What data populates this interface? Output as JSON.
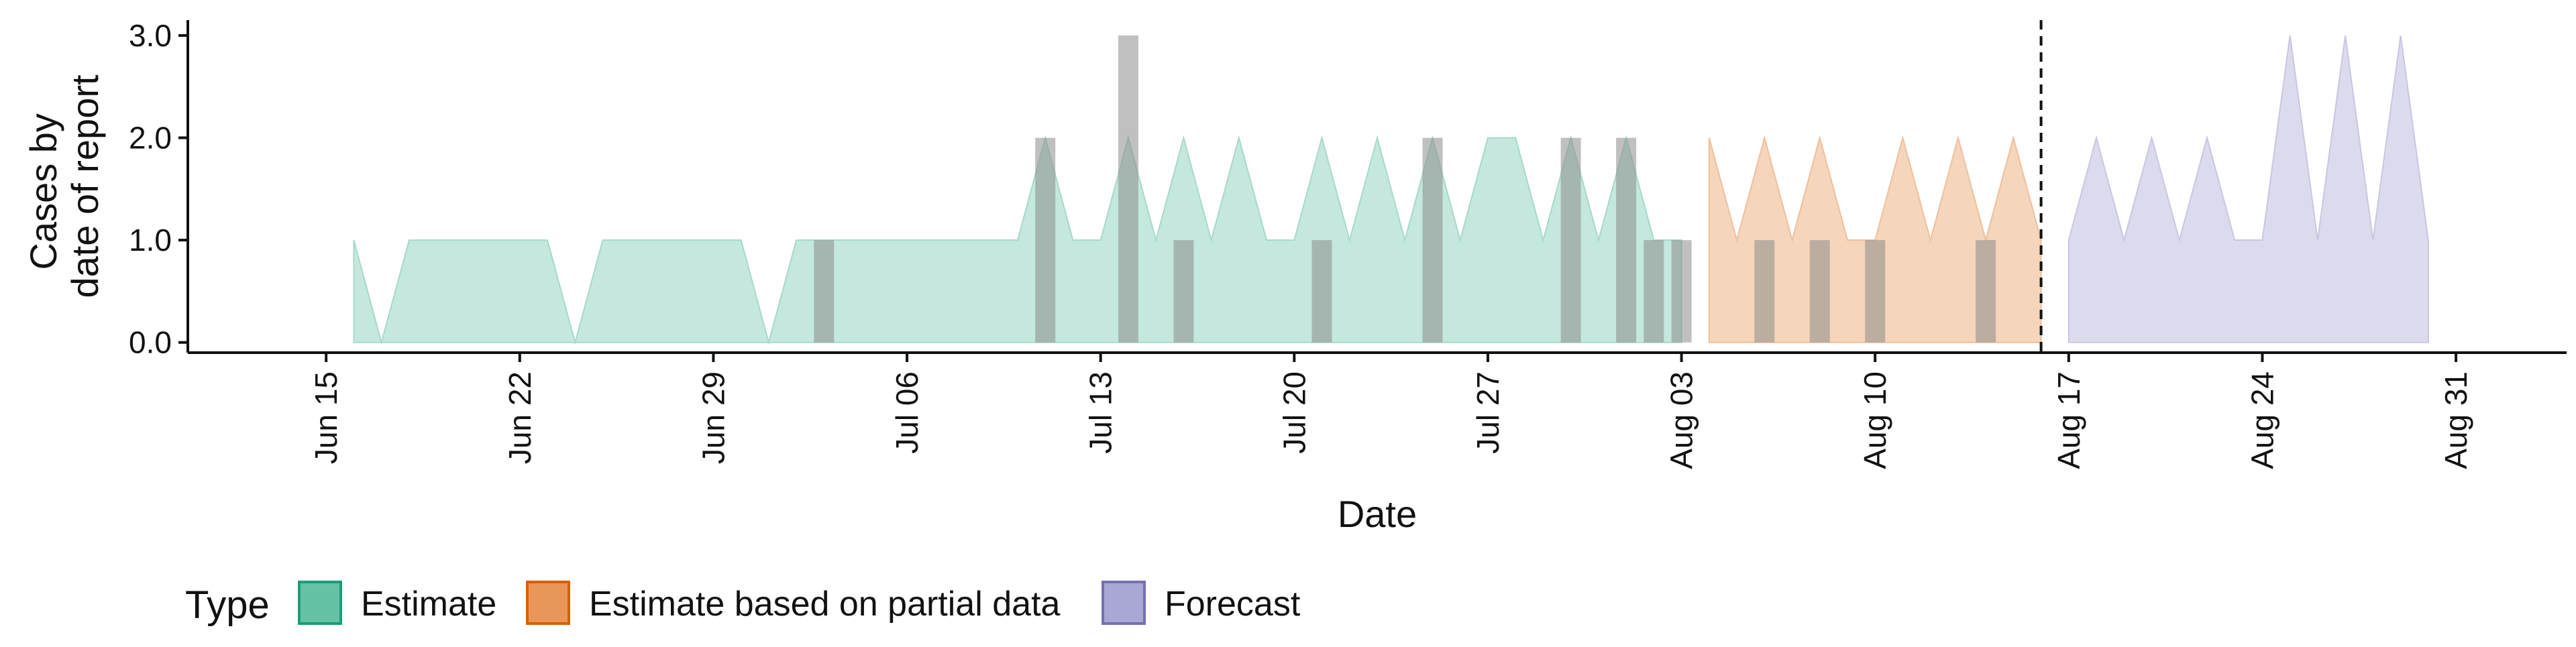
{
  "chart_data": {
    "type": "area",
    "xlabel": "Date",
    "ylabel": [
      "Cases by",
      "date of report"
    ],
    "x_ticks": [
      "Jun 15",
      "Jun 22",
      "Jun 29",
      "Jul 06",
      "Jul 13",
      "Jul 20",
      "Jul 27",
      "Aug 03",
      "Aug 10",
      "Aug 17",
      "Aug 24",
      "Aug 31"
    ],
    "y_ticks": [
      "0.0",
      "1.0",
      "2.0",
      "3.0"
    ],
    "xlim": [
      "2020-06-10",
      "2020-09-04"
    ],
    "ylim": [
      -0.1,
      3.15
    ],
    "forecast_line_date": "2020-08-16",
    "legend": {
      "title": "Type",
      "position": "bottom-left",
      "entries": [
        {
          "label": "Estimate",
          "fill": "#66c2a5",
          "stroke": "#1b9e77"
        },
        {
          "label": "Estimate based on partial data",
          "fill": "#e9965a",
          "stroke": "#d95f02"
        },
        {
          "label": "Forecast",
          "fill": "#a9a7d3",
          "stroke": "#7570b3"
        }
      ]
    },
    "series": [
      {
        "name": "Estimate",
        "fill": "#c4e8dd",
        "stroke": "#a7d9ca",
        "points": [
          [
            "2020-06-16",
            0
          ],
          [
            "2020-06-16",
            1
          ],
          [
            "2020-06-17",
            0
          ],
          [
            "2020-06-18",
            1
          ],
          [
            "2020-06-19",
            1
          ],
          [
            "2020-06-20",
            1
          ],
          [
            "2020-06-21",
            1
          ],
          [
            "2020-06-22",
            1
          ],
          [
            "2020-06-23",
            1
          ],
          [
            "2020-06-24",
            0
          ],
          [
            "2020-06-25",
            1
          ],
          [
            "2020-06-26",
            1
          ],
          [
            "2020-06-27",
            1
          ],
          [
            "2020-06-28",
            1
          ],
          [
            "2020-06-29",
            1
          ],
          [
            "2020-06-30",
            1
          ],
          [
            "2020-07-01",
            0
          ],
          [
            "2020-07-02",
            1
          ],
          [
            "2020-07-03",
            1
          ],
          [
            "2020-07-04",
            1
          ],
          [
            "2020-07-05",
            1
          ],
          [
            "2020-07-06",
            1
          ],
          [
            "2020-07-07",
            1
          ],
          [
            "2020-07-08",
            1
          ],
          [
            "2020-07-09",
            1
          ],
          [
            "2020-07-10",
            1
          ],
          [
            "2020-07-11",
            2
          ],
          [
            "2020-07-12",
            1
          ],
          [
            "2020-07-13",
            1
          ],
          [
            "2020-07-14",
            2
          ],
          [
            "2020-07-15",
            1
          ],
          [
            "2020-07-16",
            2
          ],
          [
            "2020-07-17",
            1
          ],
          [
            "2020-07-18",
            2
          ],
          [
            "2020-07-19",
            1
          ],
          [
            "2020-07-20",
            1
          ],
          [
            "2020-07-21",
            2
          ],
          [
            "2020-07-22",
            1
          ],
          [
            "2020-07-23",
            2
          ],
          [
            "2020-07-24",
            1
          ],
          [
            "2020-07-25",
            2
          ],
          [
            "2020-07-26",
            1
          ],
          [
            "2020-07-27",
            2
          ],
          [
            "2020-07-28",
            2
          ],
          [
            "2020-07-29",
            1
          ],
          [
            "2020-07-30",
            2
          ],
          [
            "2020-07-31",
            1
          ],
          [
            "2020-08-01",
            2
          ],
          [
            "2020-08-02",
            1
          ],
          [
            "2020-08-03",
            1
          ],
          [
            "2020-08-03",
            0
          ]
        ]
      },
      {
        "name": "Estimate based on partial data",
        "fill": "#f5d5bb",
        "stroke": "#efc09c",
        "points": [
          [
            "2020-08-04",
            0
          ],
          [
            "2020-08-04",
            2
          ],
          [
            "2020-08-05",
            1
          ],
          [
            "2020-08-06",
            2
          ],
          [
            "2020-08-07",
            1
          ],
          [
            "2020-08-08",
            2
          ],
          [
            "2020-08-09",
            1
          ],
          [
            "2020-08-10",
            1
          ],
          [
            "2020-08-11",
            2
          ],
          [
            "2020-08-12",
            1
          ],
          [
            "2020-08-13",
            2
          ],
          [
            "2020-08-14",
            1
          ],
          [
            "2020-08-15",
            2
          ],
          [
            "2020-08-16",
            1
          ],
          [
            "2020-08-16",
            0
          ]
        ]
      },
      {
        "name": "Forecast",
        "fill": "#dcdbed",
        "stroke": "#c8c6e2",
        "points": [
          [
            "2020-08-17",
            0
          ],
          [
            "2020-08-17",
            1
          ],
          [
            "2020-08-18",
            2
          ],
          [
            "2020-08-19",
            1
          ],
          [
            "2020-08-20",
            2
          ],
          [
            "2020-08-21",
            1
          ],
          [
            "2020-08-22",
            2
          ],
          [
            "2020-08-23",
            1
          ],
          [
            "2020-08-24",
            1
          ],
          [
            "2020-08-25",
            3
          ],
          [
            "2020-08-26",
            1
          ],
          [
            "2020-08-27",
            3
          ],
          [
            "2020-08-28",
            1
          ],
          [
            "2020-08-29",
            3
          ],
          [
            "2020-08-30",
            1
          ],
          [
            "2020-08-30",
            0
          ]
        ]
      }
    ],
    "bars": {
      "fill": "#8c8c8c",
      "opacity": 0.55,
      "points": [
        [
          "2020-07-03",
          1
        ],
        [
          "2020-07-11",
          2
        ],
        [
          "2020-07-14",
          3
        ],
        [
          "2020-07-16",
          1
        ],
        [
          "2020-07-21",
          1
        ],
        [
          "2020-07-25",
          2
        ],
        [
          "2020-07-30",
          2
        ],
        [
          "2020-08-01",
          2
        ],
        [
          "2020-08-02",
          1
        ],
        [
          "2020-08-03",
          1
        ],
        [
          "2020-08-06",
          1
        ],
        [
          "2020-08-08",
          1
        ],
        [
          "2020-08-10",
          1
        ],
        [
          "2020-08-14",
          1
        ]
      ]
    }
  }
}
